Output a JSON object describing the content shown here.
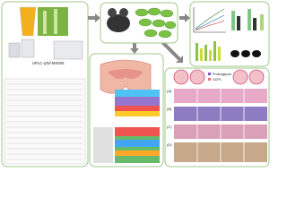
{
  "left_panel": {
    "instrument_label": "UPLC-qTof-MS/MS"
  },
  "histology": {
    "legend": [
      "Proteoglycan",
      "GCP1"
    ],
    "panel_labels": [
      "(A)",
      "(B)",
      "(C)",
      "(D)"
    ]
  }
}
